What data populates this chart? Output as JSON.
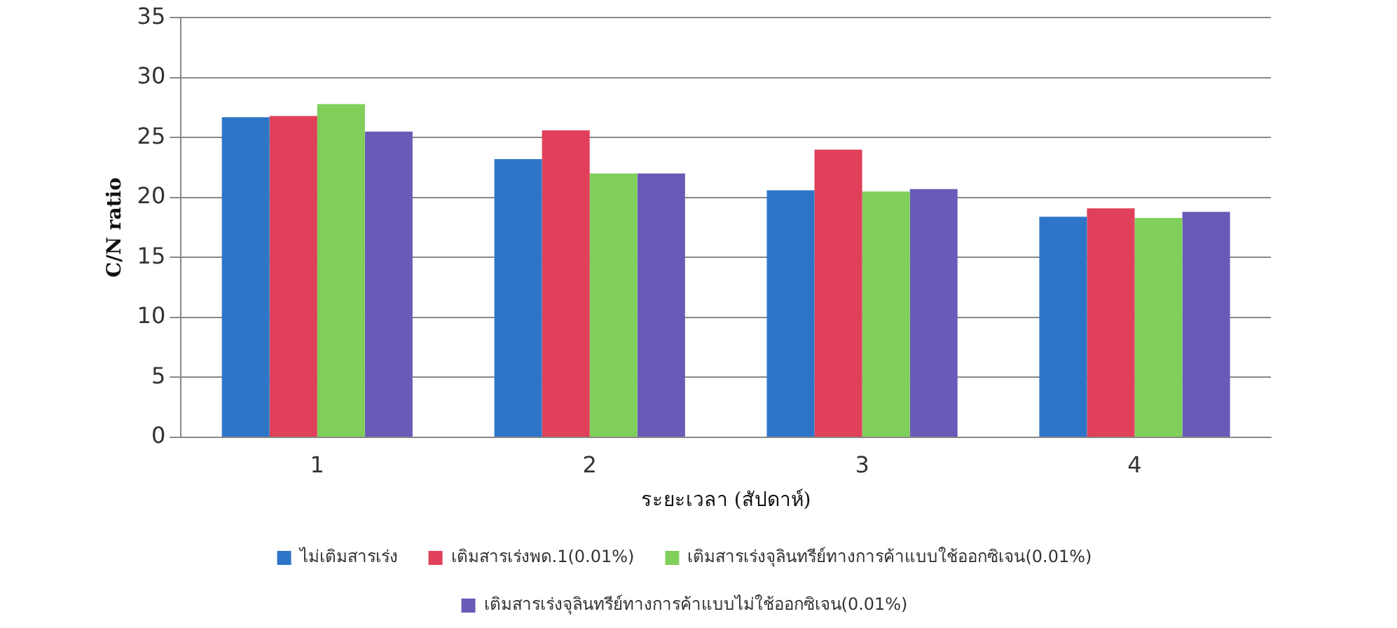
{
  "chart_data": {
    "type": "bar",
    "xlabel": "ระยะเวลา (สัปดาห์)",
    "ylabel": "C/N ratio",
    "categories": [
      "1",
      "2",
      "3",
      "4"
    ],
    "series": [
      {
        "name": "ไม่เติมสารเร่ง",
        "color": "#2e75c8",
        "values": [
          26.7,
          23.2,
          20.6,
          18.4
        ]
      },
      {
        "name": "เติมสารเร่งพด.1(0.01%)",
        "color": "#e0405a",
        "values": [
          26.8,
          25.6,
          24.0,
          19.1
        ]
      },
      {
        "name": "เติมสารเร่งจุลินทรีย์ทางการค้าแบบใช้ออกซิเจน(0.01%)",
        "color": "#7fcf5a",
        "values": [
          27.8,
          22.0,
          20.5,
          18.3
        ]
      },
      {
        "name": "เติมสารเร่งจุลินทรีย์ทางการค้าแบบไม่ใช้ออกซิเจน(0.01%)",
        "color": "#6a5ab8",
        "values": [
          25.5,
          22.0,
          20.7,
          18.8
        ]
      }
    ],
    "ylim": [
      0,
      35
    ],
    "yticks": [
      0,
      5,
      10,
      15,
      20,
      25,
      30,
      35
    ],
    "grid": "y",
    "legend": "bottom"
  }
}
